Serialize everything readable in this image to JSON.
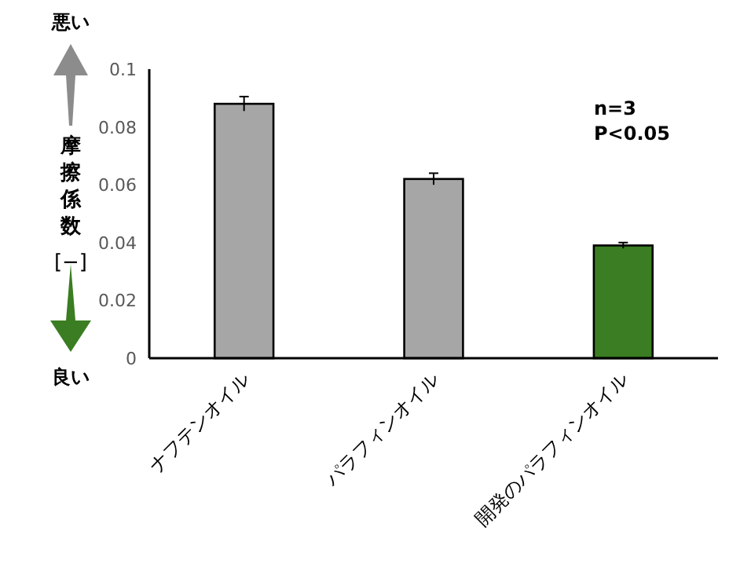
{
  "chart_data": {
    "type": "bar",
    "ylabel": "摩擦係数 [−]",
    "categories": [
      "ナフテンオイル",
      "パラフィンオイル",
      "開発のパラフィンオイル"
    ],
    "values": [
      0.088,
      0.062,
      0.039
    ],
    "errors": [
      0.0025,
      0.002,
      0.001
    ],
    "colors": [
      "#a6a6a6",
      "#a6a6a6",
      "#3a7d22"
    ],
    "ylim": [
      0,
      0.1
    ],
    "yticks": [
      0,
      0.02,
      0.04,
      0.06,
      0.08,
      {
        "value": 0.1,
        "label": "0.1"
      }
    ],
    "annotations": [
      "悪い",
      "良い",
      "n=3",
      "P<0.05"
    ],
    "grid": false
  }
}
